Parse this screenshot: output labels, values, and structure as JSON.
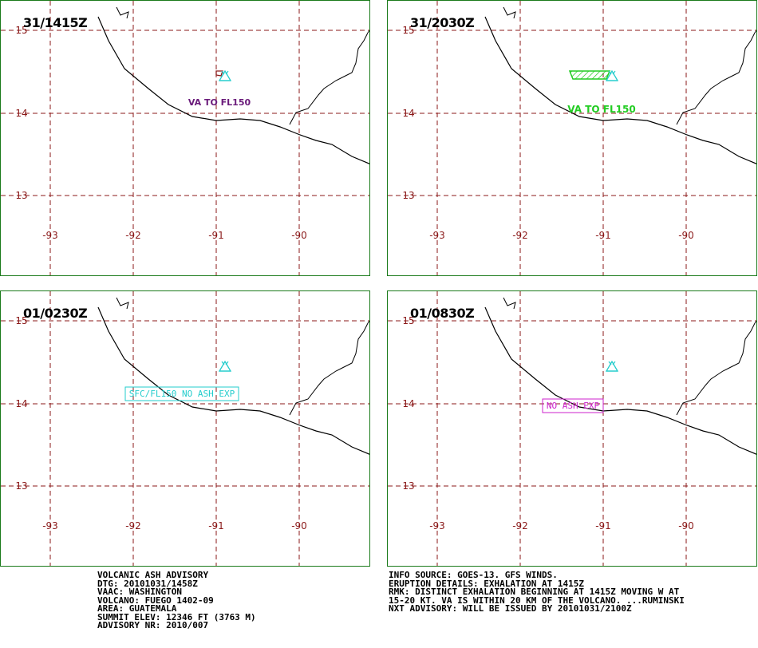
{
  "panels": [
    {
      "time": "31/1415Z",
      "label": {
        "text": "VA TO FL150",
        "color": "#6a1a7a",
        "boxed": false,
        "hatched": false
      },
      "ash_outline_color": "#8b1a1a"
    },
    {
      "time": "31/2030Z",
      "label": {
        "text": "VA TO FL150",
        "color": "#22cc22",
        "boxed": false,
        "hatched": true
      },
      "ash_outline_color": "#22cc22"
    },
    {
      "time": "01/0230Z",
      "label": {
        "text": "SFC/FL150 NO ASH EXP",
        "color": "#22cccc",
        "boxed": true,
        "hatched": false
      }
    },
    {
      "time": "01/0830Z",
      "label": {
        "text": "NO ASH EXP",
        "color": "#cc22cc",
        "boxed": true,
        "hatched": false
      }
    }
  ],
  "map": {
    "lat_labels": [
      "15",
      "14",
      "13"
    ],
    "lon_labels": [
      "-93",
      "-92",
      "-91",
      "-90"
    ],
    "grid_color": "#8b1a1a",
    "coast_color": "#000000",
    "volcano_icon": "volcano-icon",
    "volcano_color": "#22cccc"
  },
  "advisory_left": [
    "VOLCANIC ASH ADVISORY",
    "DTG: 20101031/1458Z",
    "VAAC: WASHINGTON",
    "VOLCANO: FUEGO 1402-09",
    "AREA: GUATEMALA",
    "SUMMIT ELEV: 12346 FT (3763 M)",
    "ADVISORY NR: 2010/007"
  ],
  "advisory_right": [
    "INFO SOURCE: GOES-13. GFS WINDS.",
    "ERUPTION DETAILS: EXHALATION AT 1415Z",
    "RMK: DISTINCT EXHALATION BEGINNING AT 1415Z MOVING W AT",
    "15-20 KT. VA IS WITHIN 20 KM OF THE VOLCANO. ...RUMINSKI",
    "NXT ADVISORY: WILL BE ISSUED BY 20101031/2100Z"
  ]
}
